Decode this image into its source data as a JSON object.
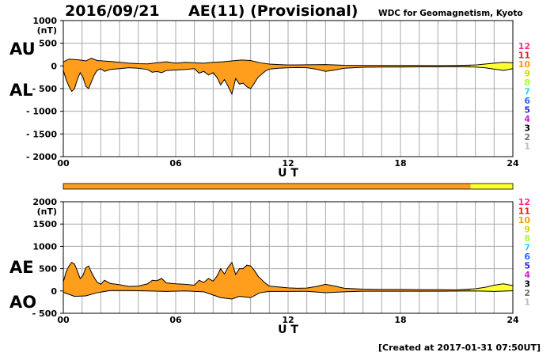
{
  "header": {
    "date": "2016/09/21",
    "title": "AE(11) (Provisional)",
    "source": "WDC for Geomagnetism, Kyoto",
    "created": "[Created at 2017-01-31 07:50UT]"
  },
  "labels": {
    "au": "AU",
    "al": "AL",
    "ae": "AE",
    "ao": "AO"
  },
  "colors": {
    "fill_orange": "#ff9e1c",
    "fill_yellow": "#ffff33",
    "grid": "#a8a8a8",
    "outline": "#000000"
  },
  "station_legend": [
    {
      "n": "12",
      "color": "#ff2a8a"
    },
    {
      "n": "11",
      "color": "#e8231a"
    },
    {
      "n": "10",
      "color": "#ff9a00"
    },
    {
      "n": "9",
      "color": "#d6d600"
    },
    {
      "n": "8",
      "color": "#a8ff30"
    },
    {
      "n": "7",
      "color": "#30d0ff"
    },
    {
      "n": "6",
      "color": "#1e6bff"
    },
    {
      "n": "5",
      "color": "#2a2ac8"
    },
    {
      "n": "4",
      "color": "#d020d0"
    },
    {
      "n": "3",
      "color": "#000000"
    },
    {
      "n": "2",
      "color": "#707070"
    },
    {
      "n": "1",
      "color": "#bdbdbd"
    }
  ],
  "station_bar": [
    {
      "from": 0,
      "to": 21.75,
      "color": "#ff9e1c"
    },
    {
      "from": 21.75,
      "to": 24,
      "color": "#ffff33"
    }
  ],
  "chart_data": [
    {
      "type": "area",
      "panel": "AU/AL",
      "unit_label": "(nT)",
      "xlabel": "U T",
      "ylabel": "",
      "xlim": [
        0,
        24
      ],
      "ylim": [
        -2000,
        1000
      ],
      "xticks": [
        "00",
        "06",
        "12",
        "18",
        "24"
      ],
      "yticks": [
        "1000",
        "500",
        "0",
        "- 500",
        "- 1000",
        "- 1500",
        "- 2000"
      ],
      "yellow_from_hour": 21.75,
      "series": [
        {
          "name": "AU",
          "x": [
            0,
            0.3,
            0.6,
            0.9,
            1.2,
            1.5,
            1.8,
            2.1,
            2.5,
            3,
            3.5,
            4,
            4.5,
            5,
            5.5,
            6,
            6.5,
            7,
            7.5,
            8,
            8.5,
            9,
            9.5,
            10,
            10.5,
            11,
            11.5,
            12,
            13,
            14,
            15,
            16,
            17,
            18,
            19,
            20,
            21,
            22,
            22.5,
            23,
            23.5,
            24
          ],
          "values": [
            90,
            150,
            140,
            130,
            110,
            170,
            120,
            110,
            100,
            80,
            60,
            50,
            45,
            70,
            90,
            60,
            80,
            70,
            60,
            80,
            90,
            110,
            130,
            120,
            70,
            40,
            30,
            20,
            25,
            30,
            15,
            10,
            10,
            10,
            10,
            8,
            10,
            20,
            40,
            60,
            80,
            70
          ]
        },
        {
          "name": "AL",
          "x": [
            0,
            0.15,
            0.3,
            0.45,
            0.6,
            0.75,
            0.9,
            1.05,
            1.2,
            1.35,
            1.5,
            1.65,
            1.8,
            2,
            2.2,
            2.5,
            3,
            3.5,
            4,
            4.5,
            4.75,
            5,
            5.25,
            5.5,
            6,
            6.5,
            7,
            7.25,
            7.5,
            7.75,
            8,
            8.2,
            8.4,
            8.6,
            8.8,
            9,
            9.2,
            9.4,
            9.6,
            9.8,
            10,
            10.2,
            10.4,
            10.6,
            10.8,
            11,
            11.5,
            12,
            12.5,
            13,
            13.5,
            14,
            14.5,
            15,
            16,
            17,
            18,
            19,
            20,
            21,
            22,
            22.5,
            23,
            23.5,
            24
          ],
          "values": [
            -100,
            -300,
            -450,
            -560,
            -500,
            -300,
            -150,
            -250,
            -450,
            -500,
            -350,
            -200,
            -100,
            -60,
            -120,
            -80,
            -60,
            -40,
            -50,
            -80,
            -140,
            -120,
            -150,
            -100,
            -90,
            -80,
            -60,
            -160,
            -120,
            -200,
            -150,
            -250,
            -420,
            -300,
            -450,
            -620,
            -280,
            -400,
            -380,
            -460,
            -500,
            -380,
            -250,
            -180,
            -110,
            -70,
            -50,
            -40,
            -35,
            -40,
            -70,
            -120,
            -90,
            -50,
            -30,
            -25,
            -25,
            -20,
            -20,
            -15,
            -25,
            -40,
            -70,
            -100,
            -60
          ]
        }
      ]
    },
    {
      "type": "area",
      "panel": "AE/AO",
      "unit_label": "(nT)",
      "xlabel": "U T",
      "ylabel": "",
      "xlim": [
        0,
        24
      ],
      "ylim": [
        -500,
        2000
      ],
      "xticks": [
        "00",
        "06",
        "12",
        "18",
        "24"
      ],
      "yticks": [
        "2000",
        "1500",
        "1000",
        "500",
        "0",
        "- 500"
      ],
      "yellow_from_hour": 21.75,
      "series": [
        {
          "name": "AE",
          "x": [
            0,
            0.15,
            0.3,
            0.45,
            0.6,
            0.75,
            0.9,
            1.05,
            1.2,
            1.35,
            1.5,
            1.65,
            1.8,
            2,
            2.2,
            2.5,
            3,
            3.5,
            4,
            4.5,
            4.75,
            5,
            5.25,
            5.5,
            6,
            6.5,
            7,
            7.25,
            7.5,
            7.75,
            8,
            8.2,
            8.4,
            8.6,
            8.8,
            9,
            9.2,
            9.4,
            9.6,
            9.8,
            10,
            10.2,
            10.4,
            10.6,
            10.8,
            11,
            11.5,
            12,
            12.5,
            13,
            13.5,
            14,
            14.5,
            15,
            16,
            17,
            18,
            19,
            20,
            21,
            22,
            22.5,
            23,
            23.5,
            24
          ],
          "values": [
            200,
            430,
            560,
            640,
            600,
            450,
            280,
            350,
            520,
            560,
            420,
            300,
            200,
            150,
            240,
            170,
            140,
            100,
            110,
            160,
            240,
            230,
            280,
            180,
            160,
            150,
            130,
            240,
            190,
            280,
            220,
            330,
            500,
            380,
            530,
            640,
            370,
            500,
            500,
            580,
            560,
            460,
            330,
            250,
            170,
            110,
            90,
            70,
            60,
            65,
            100,
            150,
            110,
            60,
            40,
            35,
            35,
            30,
            30,
            25,
            50,
            80,
            130,
            160,
            120
          ]
        },
        {
          "name": "AO",
          "x": [
            0,
            0.6,
            1.2,
            1.8,
            2.5,
            3.5,
            4.5,
            5.5,
            6.5,
            7.5,
            8.4,
            9,
            9.4,
            10,
            10.5,
            11,
            12,
            13,
            14,
            15,
            16,
            18,
            20,
            22,
            23,
            24
          ],
          "values": [
            -30,
            -120,
            -110,
            -40,
            10,
            10,
            0,
            -10,
            0,
            -20,
            -150,
            -180,
            -120,
            -150,
            -40,
            -10,
            -10,
            -8,
            -40,
            -20,
            -5,
            -5,
            -5,
            0,
            -10,
            5
          ]
        }
      ]
    }
  ]
}
